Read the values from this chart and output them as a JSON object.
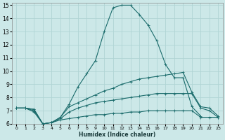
{
  "xlabel": "Humidex (Indice chaleur)",
  "bg_color": "#cce8e8",
  "grid_color": "#b0d4d4",
  "line_color": "#1a6b6b",
  "xlim": [
    -0.5,
    23.5
  ],
  "ylim": [
    6,
    15.2
  ],
  "xticks": [
    0,
    1,
    2,
    3,
    4,
    5,
    6,
    7,
    8,
    9,
    10,
    11,
    12,
    13,
    14,
    15,
    16,
    17,
    18,
    19,
    20,
    21,
    22,
    23
  ],
  "yticks": [
    6,
    7,
    8,
    9,
    10,
    11,
    12,
    13,
    14,
    15
  ],
  "line1_x": [
    0,
    1,
    2,
    3,
    4,
    5,
    6,
    7,
    8,
    9,
    10,
    11,
    12,
    13,
    14,
    15,
    16,
    17,
    18,
    19,
    20,
    21,
    22,
    23
  ],
  "line1_y": [
    7.2,
    7.2,
    7.1,
    6.0,
    6.1,
    6.5,
    7.5,
    8.8,
    9.8,
    10.8,
    13.0,
    14.8,
    15.0,
    15.0,
    14.3,
    13.5,
    12.3,
    10.5,
    9.5,
    9.5,
    7.3,
    6.6,
    null,
    null
  ],
  "line2_x": [
    0,
    1,
    2,
    3,
    4,
    5,
    6,
    7,
    8,
    9,
    10,
    11,
    12,
    13,
    14,
    15,
    16,
    17,
    18,
    19,
    20,
    21,
    22,
    23
  ],
  "line2_y": [
    7.2,
    7.2,
    7.1,
    6.0,
    6.1,
    6.5,
    7.3,
    7.6,
    7.9,
    8.2,
    8.5,
    8.7,
    9.0,
    9.2,
    9.4,
    9.5,
    9.6,
    9.7,
    9.8,
    9.9,
    8.4,
    7.3,
    7.2,
    6.6
  ],
  "line3_x": [
    0,
    1,
    2,
    3,
    4,
    5,
    6,
    7,
    8,
    9,
    10,
    11,
    12,
    13,
    14,
    15,
    16,
    17,
    18,
    19,
    20,
    21,
    22,
    23
  ],
  "line3_y": [
    7.2,
    7.2,
    7.0,
    6.0,
    6.1,
    6.4,
    6.9,
    7.2,
    7.4,
    7.6,
    7.7,
    7.8,
    7.9,
    8.0,
    8.1,
    8.2,
    8.3,
    8.3,
    8.3,
    8.3,
    8.3,
    7.2,
    7.0,
    6.5
  ],
  "line4_x": [
    0,
    1,
    2,
    3,
    4,
    5,
    6,
    7,
    8,
    9,
    10,
    11,
    12,
    13,
    14,
    15,
    16,
    17,
    18,
    19,
    20,
    21,
    22,
    23
  ],
  "line4_y": [
    7.2,
    7.2,
    6.9,
    6.0,
    6.1,
    6.3,
    6.4,
    6.5,
    6.6,
    6.7,
    6.7,
    6.8,
    6.8,
    6.9,
    6.9,
    7.0,
    7.0,
    7.0,
    7.0,
    7.0,
    7.0,
    6.5,
    6.5,
    6.5
  ]
}
